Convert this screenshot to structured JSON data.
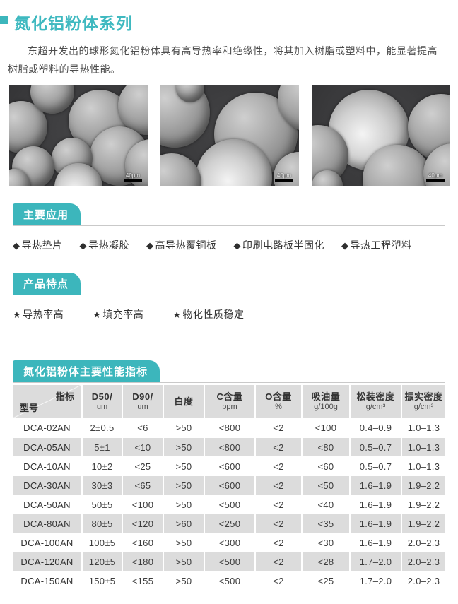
{
  "page": {
    "title": "氮化铝粉体系列",
    "intro": "东超开发出的球形氮化铝粉体具有高导热率和绝缘性，将其加入树脂或塑料中，能显著提高树脂或塑料的导热性能。"
  },
  "images": {
    "count": 3,
    "scale_label": "40μm"
  },
  "sections": {
    "applications": {
      "header": "主要应用",
      "bullet": "◆",
      "items": [
        "导热垫片",
        "导热凝胶",
        "高导热覆铜板",
        "印刷电路板半固化",
        "导热工程塑料"
      ]
    },
    "features": {
      "header": "产品特点",
      "bullet": "★",
      "items": [
        "导热率高",
        "填充率高",
        "物化性质稳定"
      ]
    }
  },
  "table": {
    "header": "氮化铝粉体主要性能指标",
    "corner": {
      "top": "指标",
      "bottom": "型号"
    },
    "columns": [
      {
        "label": "D50/",
        "unit": "um"
      },
      {
        "label": "D90/",
        "unit": "um"
      },
      {
        "label": "白度",
        "unit": ""
      },
      {
        "label": "C含量",
        "unit": "ppm"
      },
      {
        "label": "O含量",
        "unit": "%"
      },
      {
        "label": "吸油量",
        "unit": "g/100g"
      },
      {
        "label": "松装密度",
        "unit": "g/cm³"
      },
      {
        "label": "振实密度",
        "unit": "g/cm³"
      }
    ],
    "rows": [
      {
        "model": "DCA-02AN",
        "values": [
          "2±0.5",
          "<6",
          ">50",
          "<800",
          "<2",
          "<100",
          "0.4–0.9",
          "1.0–1.3"
        ]
      },
      {
        "model": "DCA-05AN",
        "values": [
          "5±1",
          "<10",
          ">50",
          "<800",
          "<2",
          "<80",
          "0.5–0.7",
          "1.0–1.3"
        ]
      },
      {
        "model": "DCA-10AN",
        "values": [
          "10±2",
          "<25",
          ">50",
          "<600",
          "<2",
          "<60",
          "0.5–0.7",
          "1.0–1.3"
        ]
      },
      {
        "model": "DCA-30AN",
        "values": [
          "30±3",
          "<65",
          ">50",
          "<600",
          "<2",
          "<50",
          "1.6–1.9",
          "1.9–2.2"
        ]
      },
      {
        "model": "DCA-50AN",
        "values": [
          "50±5",
          "<100",
          ">50",
          "<500",
          "<2",
          "<40",
          "1.6–1.9",
          "1.9–2.2"
        ]
      },
      {
        "model": "DCA-80AN",
        "values": [
          "80±5",
          "<120",
          ">60",
          "<250",
          "<2",
          "<35",
          "1.6–1.9",
          "1.9–2.2"
        ]
      },
      {
        "model": "DCA-100AN",
        "values": [
          "100±5",
          "<160",
          ">50",
          "<300",
          "<2",
          "<30",
          "1.6–1.9",
          "2.0–2.3"
        ]
      },
      {
        "model": "DCA-120AN",
        "values": [
          "120±5",
          "<180",
          ">50",
          "<500",
          "<2",
          "<28",
          "1.7–2.0",
          "2.0–2.3"
        ]
      },
      {
        "model": "DCA-150AN",
        "values": [
          "150±5",
          "<155",
          ">50",
          "<500",
          "<2",
          "<25",
          "1.7–2.0",
          "2.0–2.3"
        ]
      }
    ]
  },
  "colors": {
    "accent": "#3cb6bc",
    "header_gray": "#dcdcdc"
  }
}
